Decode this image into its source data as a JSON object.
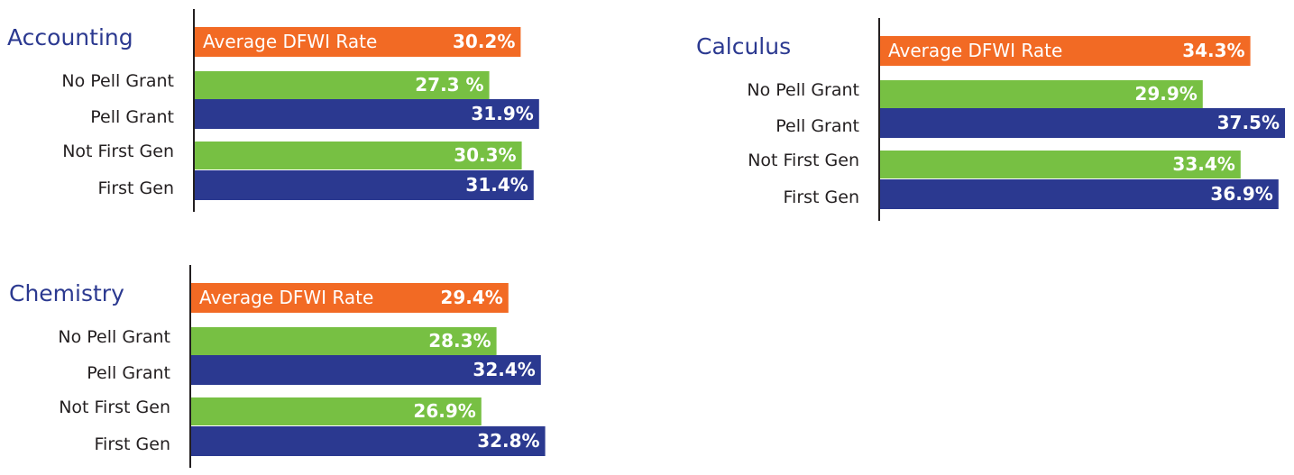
{
  "chart_data": [
    {
      "type": "bar",
      "orientation": "horizontal",
      "title": "Accounting",
      "categories": [
        "Average DFWI Rate",
        "No Pell Grant",
        "Pell Grant",
        "Not First Gen",
        "First Gen"
      ],
      "values": [
        30.2,
        27.3,
        31.9,
        30.3,
        31.4
      ],
      "value_labels": [
        "30.2%",
        "27.3 %",
        "31.9%",
        "30.3%",
        "31.4%"
      ],
      "colors": [
        "#f26a24",
        "#77c043",
        "#2b3990",
        "#77c043",
        "#2b3990"
      ],
      "xlim": [
        0,
        40
      ]
    },
    {
      "type": "bar",
      "orientation": "horizontal",
      "title": "Calculus",
      "categories": [
        "Average DFWI Rate",
        "No Pell Grant",
        "Pell Grant",
        "Not First Gen",
        "First Gen"
      ],
      "values": [
        34.3,
        29.9,
        37.5,
        33.4,
        36.9
      ],
      "value_labels": [
        "34.3%",
        "29.9%",
        "37.5%",
        "33.4%",
        "36.9%"
      ],
      "colors": [
        "#f26a24",
        "#77c043",
        "#2b3990",
        "#77c043",
        "#2b3990"
      ],
      "xlim": [
        0,
        40
      ]
    },
    {
      "type": "bar",
      "orientation": "horizontal",
      "title": "Chemistry",
      "categories": [
        "Average DFWI Rate",
        "No Pell Grant",
        "Pell Grant",
        "Not First Gen",
        "First Gen"
      ],
      "values": [
        29.4,
        28.3,
        32.4,
        26.9,
        32.8
      ],
      "value_labels": [
        "29.4%",
        "28.3%",
        "32.4%",
        "26.9%",
        "32.8%"
      ],
      "colors": [
        "#f26a24",
        "#77c043",
        "#2b3990",
        "#77c043",
        "#2b3990"
      ],
      "xlim": [
        0,
        40
      ]
    }
  ]
}
